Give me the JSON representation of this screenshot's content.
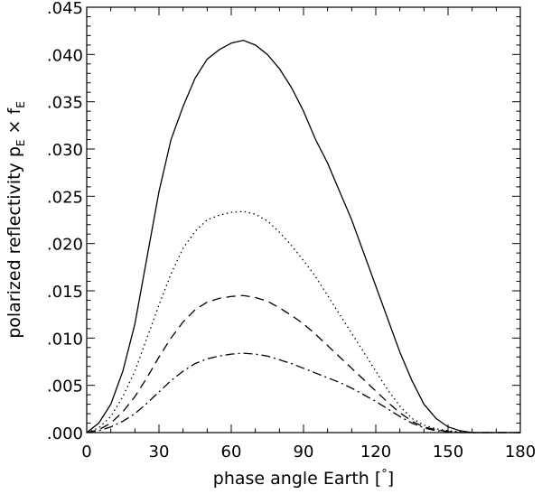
{
  "chart_data": {
    "type": "line",
    "xlabel_text": "phase angle Earth [",
    "xlabel_unit": "°",
    "xlabel_close": "]",
    "ylabel_text": "polarized reflectivity p",
    "ylabel_sub1": "E",
    "ylabel_times": " × f",
    "ylabel_sub2": "E",
    "xlim": [
      0,
      180
    ],
    "ylim": [
      0,
      0.045
    ],
    "x_ticks": [
      0,
      30,
      60,
      90,
      120,
      150,
      180
    ],
    "x_tick_labels": [
      "0",
      "30",
      "60",
      "90",
      "120",
      "150",
      "180"
    ],
    "y_ticks": [
      0,
      0.005,
      0.01,
      0.015,
      0.02,
      0.025,
      0.03,
      0.035,
      0.04,
      0.045
    ],
    "y_tick_labels": [
      ".000",
      ".005",
      ".010",
      ".015",
      ".020",
      ".025",
      ".030",
      ".035",
      ".040",
      ".045"
    ],
    "x_minor_step": 10,
    "y_minor_step": 0.001,
    "grid": false,
    "series": [
      {
        "style": "solid",
        "x": [
          0,
          5,
          10,
          15,
          20,
          25,
          30,
          35,
          40,
          45,
          50,
          55,
          60,
          65,
          70,
          75,
          80,
          85,
          90,
          95,
          100,
          105,
          110,
          115,
          120,
          125,
          130,
          135,
          140,
          145,
          150,
          155,
          160,
          165,
          170,
          175,
          180
        ],
        "y": [
          0.0,
          0.001,
          0.003,
          0.0065,
          0.0115,
          0.0185,
          0.0255,
          0.031,
          0.0345,
          0.0375,
          0.0395,
          0.0405,
          0.0412,
          0.0415,
          0.041,
          0.04,
          0.0385,
          0.0365,
          0.034,
          0.031,
          0.0285,
          0.0255,
          0.0225,
          0.019,
          0.0155,
          0.012,
          0.0085,
          0.0055,
          0.003,
          0.0015,
          0.0006,
          0.0002,
          0.0,
          0.0,
          0.0,
          0.0,
          0.0
        ]
      },
      {
        "style": "dotted",
        "x": [
          0,
          5,
          10,
          15,
          20,
          25,
          30,
          35,
          40,
          45,
          50,
          55,
          60,
          65,
          70,
          75,
          80,
          85,
          90,
          95,
          100,
          105,
          110,
          115,
          120,
          125,
          130,
          135,
          140,
          145,
          150,
          155,
          160,
          165,
          170,
          175,
          180
        ],
        "y": [
          0.0,
          0.0005,
          0.0017,
          0.0038,
          0.0065,
          0.01,
          0.0135,
          0.0168,
          0.0195,
          0.0213,
          0.0225,
          0.023,
          0.0233,
          0.0234,
          0.0231,
          0.0224,
          0.0212,
          0.0198,
          0.0182,
          0.0165,
          0.0145,
          0.0125,
          0.0105,
          0.0085,
          0.0065,
          0.0045,
          0.0028,
          0.0015,
          0.0008,
          0.0004,
          0.0002,
          0.0001,
          0.0,
          0.0,
          0.0,
          0.0,
          0.0
        ]
      },
      {
        "style": "dashed",
        "x": [
          0,
          5,
          10,
          15,
          20,
          25,
          30,
          35,
          40,
          45,
          50,
          55,
          60,
          65,
          70,
          75,
          80,
          85,
          90,
          95,
          100,
          105,
          110,
          115,
          120,
          125,
          130,
          135,
          140,
          145,
          150,
          155,
          160,
          165,
          170,
          175,
          180
        ],
        "y": [
          0.0,
          0.0003,
          0.001,
          0.0022,
          0.0038,
          0.0058,
          0.008,
          0.01,
          0.0117,
          0.013,
          0.0138,
          0.0142,
          0.0144,
          0.0145,
          0.0143,
          0.0139,
          0.0132,
          0.0124,
          0.0115,
          0.0104,
          0.0092,
          0.008,
          0.0068,
          0.0056,
          0.0044,
          0.0032,
          0.0021,
          0.0012,
          0.0006,
          0.0003,
          0.0001,
          0.0,
          0.0,
          0.0,
          0.0,
          0.0,
          0.0
        ]
      },
      {
        "style": "dash-dot",
        "x": [
          0,
          5,
          10,
          15,
          20,
          25,
          30,
          35,
          40,
          45,
          50,
          55,
          60,
          65,
          70,
          75,
          80,
          85,
          90,
          95,
          100,
          105,
          110,
          115,
          120,
          125,
          130,
          135,
          140,
          145,
          150,
          155,
          160,
          165,
          170,
          175,
          180
        ],
        "y": [
          0.0,
          0.0002,
          0.0006,
          0.0012,
          0.002,
          0.0031,
          0.0043,
          0.0055,
          0.0065,
          0.0073,
          0.0078,
          0.0081,
          0.0083,
          0.0084,
          0.0083,
          0.0081,
          0.0077,
          0.0073,
          0.0068,
          0.0063,
          0.0058,
          0.0053,
          0.0047,
          0.004,
          0.0033,
          0.0025,
          0.0017,
          0.001,
          0.0005,
          0.0002,
          0.0001,
          0.0,
          0.0,
          0.0,
          0.0,
          0.0,
          0.0
        ]
      }
    ]
  }
}
